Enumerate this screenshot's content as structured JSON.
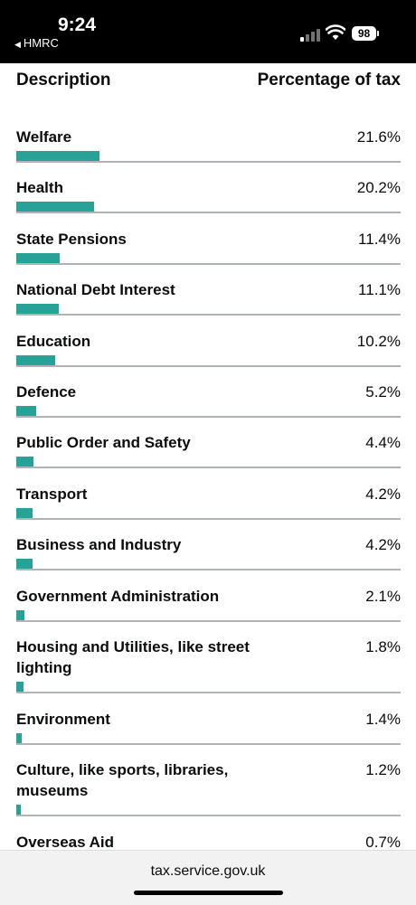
{
  "status_bar": {
    "time": "9:24",
    "back_app": "HMRC",
    "battery": "98"
  },
  "table": {
    "header_description": "Description",
    "header_percentage": "Percentage of tax",
    "bar_color": "#28a197",
    "rows": [
      {
        "label": "Welfare",
        "value": "21.6%",
        "pct": 21.6
      },
      {
        "label": "Health",
        "value": "20.2%",
        "pct": 20.2
      },
      {
        "label": "State Pensions",
        "value": "11.4%",
        "pct": 11.4
      },
      {
        "label": "National Debt Interest",
        "value": "11.1%",
        "pct": 11.1
      },
      {
        "label": "Education",
        "value": "10.2%",
        "pct": 10.2
      },
      {
        "label": "Defence",
        "value": "5.2%",
        "pct": 5.2
      },
      {
        "label": "Public Order and Safety",
        "value": "4.4%",
        "pct": 4.4
      },
      {
        "label": "Transport",
        "value": "4.2%",
        "pct": 4.2
      },
      {
        "label": "Business and Industry",
        "value": "4.2%",
        "pct": 4.2
      },
      {
        "label": "Government Administration",
        "value": "2.1%",
        "pct": 2.1
      },
      {
        "label": "Housing and Utilities, like street lighting",
        "value": "1.8%",
        "pct": 1.8
      },
      {
        "label": "Environment",
        "value": "1.4%",
        "pct": 1.4
      },
      {
        "label": "Culture, like sports, libraries, museums",
        "value": "1.2%",
        "pct": 1.2
      },
      {
        "label": "Overseas Aid",
        "value": "0.7%",
        "pct": 0.7
      }
    ]
  },
  "browser": {
    "url": "tax.service.gov.uk"
  }
}
